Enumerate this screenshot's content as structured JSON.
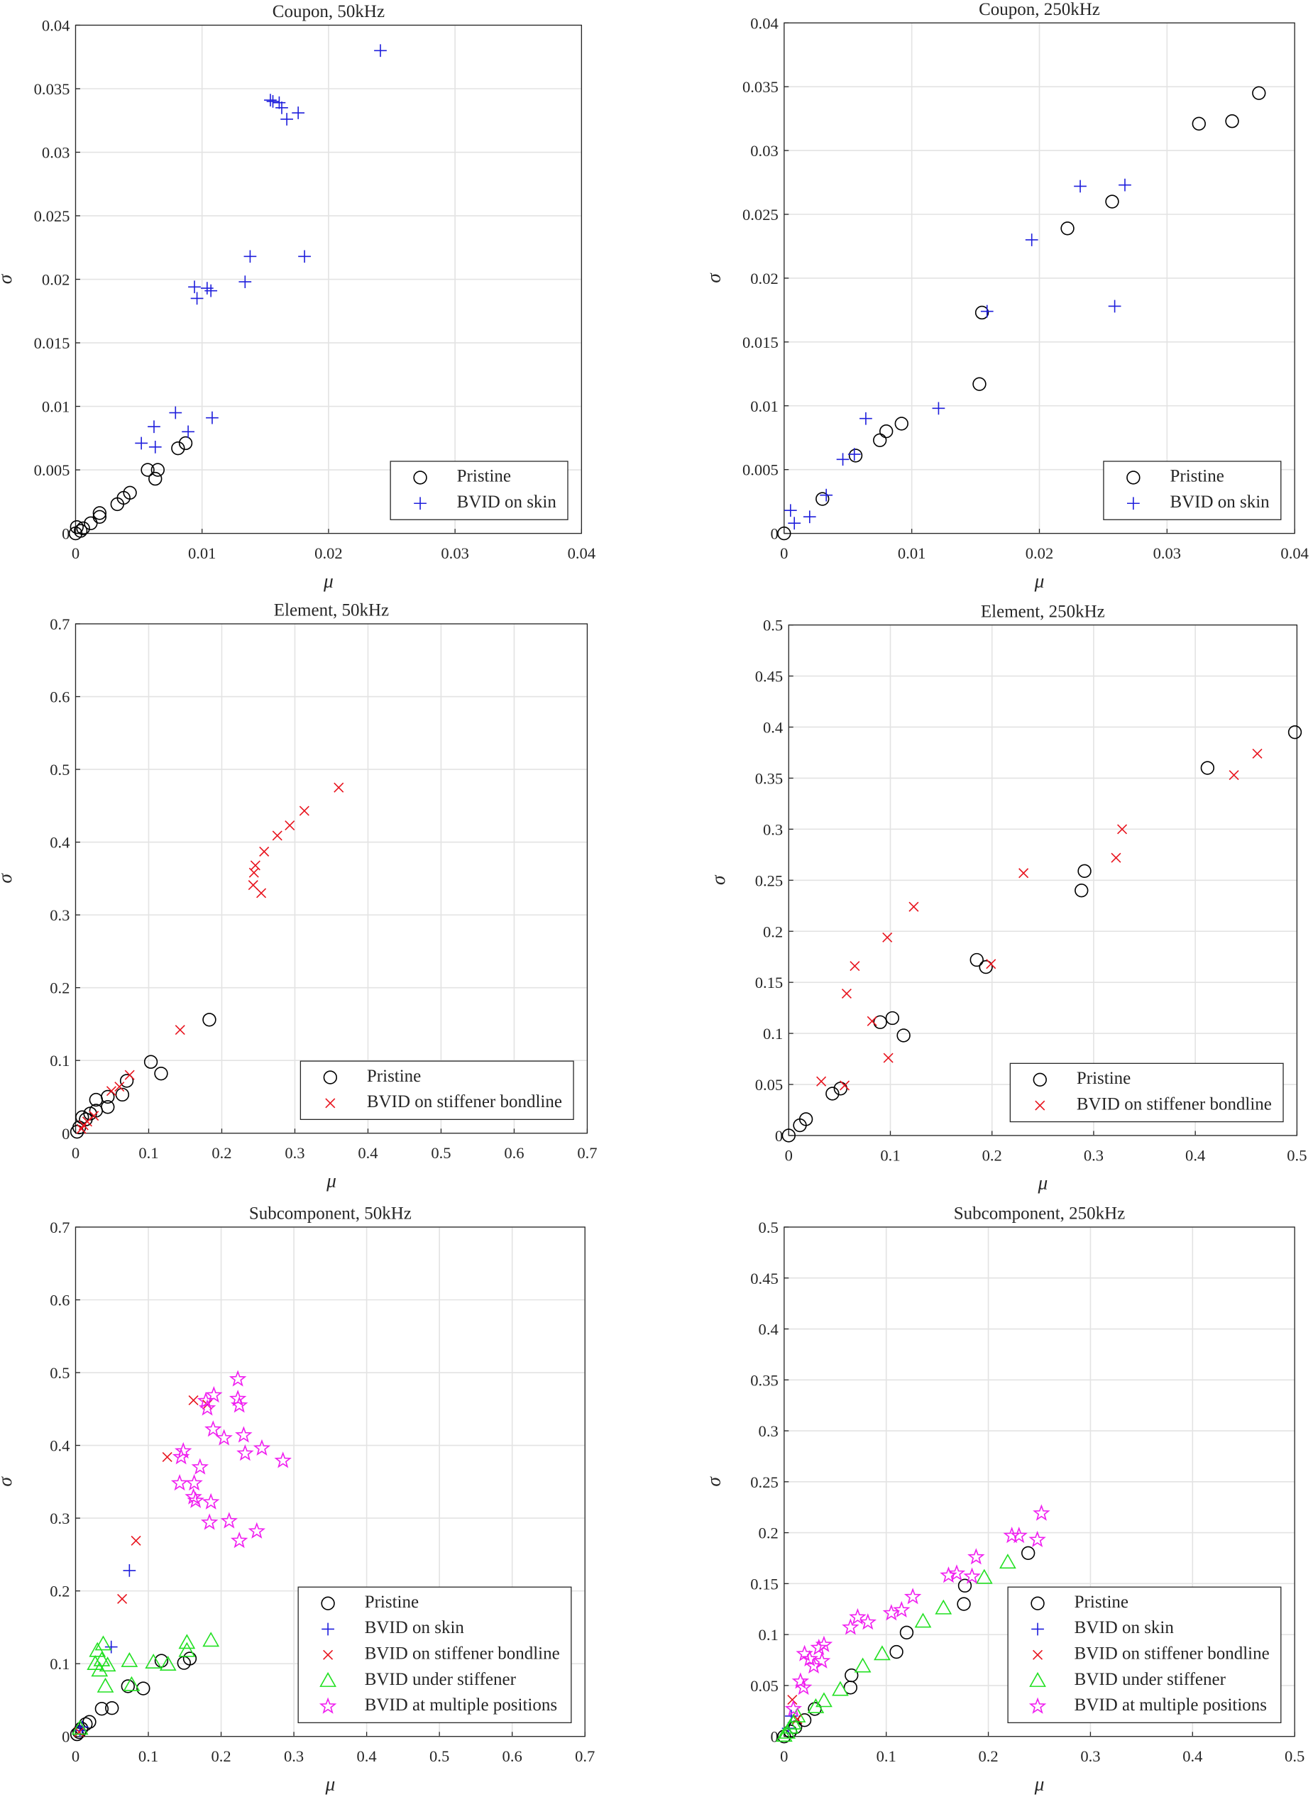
{
  "chart_data": [
    {
      "type": "scatter",
      "title": "Coupon, 50kHz",
      "x_label": "μ",
      "y_label": "σ",
      "grid": true,
      "legend": "lower right",
      "xlim": [
        0,
        0.04
      ],
      "ylim": [
        0,
        0.04
      ],
      "xticks": [
        0,
        0.01,
        0.02,
        0.03,
        0.04
      ],
      "yticks": [
        0,
        0.005,
        0.01,
        0.015,
        0.02,
        0.025,
        0.03,
        0.035,
        0.04
      ],
      "series": [
        {
          "name": "Pristine",
          "color": "#000000",
          "marker": "o",
          "x": [
            0,
            0.0001,
            0.0004,
            0.0006,
            0.0012,
            0.0019,
            0.0019,
            0.0033,
            0.0038,
            0.0043,
            0.0057,
            0.0063,
            0.0065,
            0.0081,
            0.0087
          ],
          "y": [
            0,
            0.0005,
            0.0002,
            0.0004,
            0.0008,
            0.0013,
            0.0016,
            0.0023,
            0.0028,
            0.0032,
            0.005,
            0.0043,
            0.005,
            0.0067,
            0.0071
          ]
        },
        {
          "name": "BVID on skin",
          "color": "#1f1fdc",
          "marker": "+",
          "x": [
            0.0052,
            0.0062,
            0.0063,
            0.0079,
            0.0089,
            0.0108,
            0.0094,
            0.0096,
            0.0104,
            0.0107,
            0.0134,
            0.0138,
            0.0181,
            0.0154,
            0.0156,
            0.0161,
            0.0163,
            0.0167,
            0.0176,
            0.0241
          ],
          "y": [
            0.0071,
            0.0084,
            0.0068,
            0.0095,
            0.008,
            0.0091,
            0.0194,
            0.0185,
            0.0193,
            0.0191,
            0.0198,
            0.0218,
            0.0218,
            0.0341,
            0.034,
            0.0339,
            0.0335,
            0.0326,
            0.0331,
            0.038
          ]
        }
      ]
    },
    {
      "type": "scatter",
      "title": "Coupon, 250kHz",
      "x_label": "μ",
      "y_label": "σ",
      "grid": true,
      "legend": "lower right",
      "xlim": [
        0,
        0.04
      ],
      "ylim": [
        0,
        0.04
      ],
      "xticks": [
        0,
        0.01,
        0.02,
        0.03,
        0.04
      ],
      "yticks": [
        0,
        0.005,
        0.01,
        0.015,
        0.02,
        0.025,
        0.03,
        0.035,
        0.04
      ],
      "series": [
        {
          "name": "Pristine",
          "color": "#000000",
          "marker": "o",
          "x": [
            0,
            0.003,
            0.0056,
            0.0075,
            0.008,
            0.0092,
            0.0153,
            0.0155,
            0.0222,
            0.0257,
            0.0325,
            0.0351,
            0.0372
          ],
          "y": [
            0,
            0.0027,
            0.0061,
            0.0073,
            0.008,
            0.0086,
            0.0117,
            0.0173,
            0.0239,
            0.026,
            0.0321,
            0.0323,
            0.0345
          ]
        },
        {
          "name": "BVID on skin",
          "color": "#1f1fdc",
          "marker": "+",
          "x": [
            0.0005,
            0.0008,
            0.002,
            0.0033,
            0.0046,
            0.0055,
            0.0064,
            0.0121,
            0.0159,
            0.0194,
            0.0232,
            0.0267,
            0.0259
          ],
          "y": [
            0.0018,
            0.0008,
            0.0013,
            0.003,
            0.0058,
            0.0062,
            0.009,
            0.0098,
            0.0174,
            0.023,
            0.0272,
            0.0273,
            0.0178
          ]
        }
      ]
    },
    {
      "type": "scatter",
      "title": "Element, 50kHz",
      "x_label": "μ",
      "y_label": "σ",
      "grid": true,
      "legend": "lower right",
      "xlim": [
        0,
        0.7
      ],
      "ylim": [
        0,
        0.7
      ],
      "xticks": [
        0,
        0.1,
        0.2,
        0.3,
        0.4,
        0.5,
        0.6,
        0.7
      ],
      "yticks": [
        0,
        0.1,
        0.2,
        0.3,
        0.4,
        0.5,
        0.6,
        0.7
      ],
      "series": [
        {
          "name": "Pristine",
          "color": "#000000",
          "marker": "o",
          "x": [
            0.002,
            0.005,
            0.009,
            0.014,
            0.02,
            0.028,
            0.044,
            0.028,
            0.044,
            0.064,
            0.07,
            0.103,
            0.117,
            0.183
          ],
          "y": [
            0.002,
            0.008,
            0.022,
            0.019,
            0.027,
            0.031,
            0.036,
            0.046,
            0.05,
            0.053,
            0.072,
            0.098,
            0.082,
            0.156
          ]
        },
        {
          "name": "BVID on stiffener bondline",
          "color": "#e8141e",
          "marker": "x",
          "x": [
            0.008,
            0.011,
            0.016,
            0.025,
            0.049,
            0.06,
            0.074,
            0.143,
            0.243,
            0.244,
            0.246,
            0.254,
            0.258,
            0.276,
            0.293,
            0.313,
            0.36
          ],
          "y": [
            0.006,
            0.011,
            0.016,
            0.024,
            0.058,
            0.064,
            0.08,
            0.142,
            0.341,
            0.358,
            0.368,
            0.33,
            0.387,
            0.409,
            0.423,
            0.443,
            0.475
          ]
        }
      ]
    },
    {
      "type": "scatter",
      "title": "Element, 250kHz",
      "x_label": "μ",
      "y_label": "σ",
      "grid": true,
      "legend": "lower right",
      "xlim": [
        0,
        0.5
      ],
      "ylim": [
        0,
        0.5
      ],
      "xticks": [
        0,
        0.1,
        0.2,
        0.3,
        0.4,
        0.5
      ],
      "yticks": [
        0,
        0.05,
        0.1,
        0.15,
        0.2,
        0.25,
        0.3,
        0.35,
        0.4,
        0.45,
        0.5
      ],
      "series": [
        {
          "name": "Pristine",
          "color": "#000000",
          "marker": "o",
          "x": [
            0,
            0.011,
            0.017,
            0.043,
            0.051,
            0.09,
            0.102,
            0.113,
            0.185,
            0.194,
            0.288,
            0.291,
            0.412,
            0.498
          ],
          "y": [
            0,
            0.01,
            0.016,
            0.041,
            0.046,
            0.111,
            0.115,
            0.098,
            0.172,
            0.165,
            0.24,
            0.259,
            0.36,
            0.395
          ]
        },
        {
          "name": "BVID on stiffener bondline",
          "color": "#e8141e",
          "marker": "x",
          "x": [
            0.032,
            0.055,
            0.057,
            0.065,
            0.082,
            0.098,
            0.097,
            0.123,
            0.199,
            0.231,
            0.322,
            0.328,
            0.438,
            0.461
          ],
          "y": [
            0.053,
            0.049,
            0.139,
            0.166,
            0.112,
            0.076,
            0.194,
            0.224,
            0.168,
            0.257,
            0.272,
            0.3,
            0.353,
            0.374
          ]
        }
      ]
    },
    {
      "type": "scatter",
      "title": "Subcomponent, 50kHz",
      "x_label": "μ",
      "y_label": "σ",
      "grid": true,
      "legend": "lower right",
      "xlim": [
        0,
        0.7
      ],
      "ylim": [
        0,
        0.7
      ],
      "xticks": [
        0,
        0.1,
        0.2,
        0.3,
        0.4,
        0.5,
        0.6,
        0.7
      ],
      "yticks": [
        0,
        0.1,
        0.2,
        0.3,
        0.4,
        0.5,
        0.6,
        0.7
      ],
      "series": [
        {
          "name": "Pristine",
          "color": "#000000",
          "marker": "o",
          "x": [
            0.002,
            0.005,
            0.008,
            0.014,
            0.019,
            0.036,
            0.05,
            0.072,
            0.093,
            0.118,
            0.149,
            0.157
          ],
          "y": [
            0.003,
            0.006,
            0.011,
            0.017,
            0.02,
            0.038,
            0.039,
            0.069,
            0.066,
            0.104,
            0.101,
            0.107
          ]
        },
        {
          "name": "BVID on skin",
          "color": "#1f1fdc",
          "marker": "+",
          "x": [
            0.006,
            0.009,
            0.049,
            0.074
          ],
          "y": [
            0.008,
            0.013,
            0.123,
            0.228
          ]
        },
        {
          "name": "BVID on stiffener bondline",
          "color": "#e8141e",
          "marker": "x",
          "x": [
            0.005,
            0.064,
            0.083,
            0.126,
            0.162,
            0.181
          ],
          "y": [
            0.006,
            0.189,
            0.269,
            0.384,
            0.462,
            0.456
          ]
        },
        {
          "name": "BVID under stiffener",
          "color": "#22e022",
          "marker": "^",
          "x": [
            0.006,
            0.027,
            0.03,
            0.033,
            0.036,
            0.038,
            0.041,
            0.044,
            0.074,
            0.077,
            0.107,
            0.127,
            0.153,
            0.153,
            0.186
          ],
          "y": [
            0.011,
            0.1,
            0.118,
            0.091,
            0.105,
            0.127,
            0.069,
            0.098,
            0.104,
            0.071,
            0.102,
            0.099,
            0.118,
            0.129,
            0.132
          ]
        },
        {
          "name": "BVID at multiple positions",
          "color": "#f01ef0",
          "marker": "p",
          "x": [
            0.143,
            0.145,
            0.148,
            0.162,
            0.163,
            0.165,
            0.171,
            0.179,
            0.181,
            0.184,
            0.186,
            0.189,
            0.19,
            0.204,
            0.211,
            0.223,
            0.223,
            0.225,
            0.225,
            0.231,
            0.233,
            0.249,
            0.256,
            0.285
          ],
          "y": [
            0.348,
            0.384,
            0.392,
            0.329,
            0.348,
            0.324,
            0.37,
            0.461,
            0.451,
            0.294,
            0.322,
            0.422,
            0.469,
            0.41,
            0.296,
            0.491,
            0.464,
            0.455,
            0.269,
            0.414,
            0.389,
            0.282,
            0.396,
            0.379
          ]
        }
      ]
    },
    {
      "type": "scatter",
      "title": "Subcomponent, 250kHz",
      "x_label": "μ",
      "y_label": "σ",
      "grid": true,
      "legend": "lower right",
      "xlim": [
        0,
        0.5
      ],
      "ylim": [
        0,
        0.5
      ],
      "xticks": [
        0,
        0.1,
        0.2,
        0.3,
        0.4,
        0.5
      ],
      "yticks": [
        0,
        0.05,
        0.1,
        0.15,
        0.2,
        0.25,
        0.3,
        0.35,
        0.4,
        0.45,
        0.5
      ],
      "series": [
        {
          "name": "Pristine",
          "color": "#000000",
          "marker": "o",
          "x": [
            0,
            0.006,
            0.011,
            0.02,
            0.03,
            0.065,
            0.066,
            0.11,
            0.12,
            0.176,
            0.177,
            0.239
          ],
          "y": [
            0,
            0.005,
            0.009,
            0.016,
            0.027,
            0.048,
            0.06,
            0.083,
            0.102,
            0.13,
            0.148,
            0.18
          ]
        },
        {
          "name": "BVID on skin",
          "color": "#1f1fdc",
          "marker": "+",
          "x": [
            0.004,
            0.007
          ],
          "y": [
            0.008,
            0.02
          ]
        },
        {
          "name": "BVID on stiffener bondline",
          "color": "#e8141e",
          "marker": "x",
          "x": [
            0.008,
            0.013
          ],
          "y": [
            0.036,
            0.017
          ]
        },
        {
          "name": "BVID under stiffener",
          "color": "#22e022",
          "marker": "^",
          "x": [
            0,
            0.003,
            0.006,
            0.009,
            0.013,
            0.031,
            0.039,
            0.055,
            0.077,
            0.096,
            0.136,
            0.156,
            0.196,
            0.219
          ],
          "y": [
            0.001,
            0.004,
            0.009,
            0.013,
            0.02,
            0.029,
            0.035,
            0.046,
            0.069,
            0.081,
            0.113,
            0.126,
            0.156,
            0.171
          ]
        },
        {
          "name": "BVID at multiple positions",
          "color": "#f01ef0",
          "marker": "p",
          "x": [
            0.009,
            0.016,
            0.019,
            0.02,
            0.025,
            0.029,
            0.034,
            0.037,
            0.039,
            0.065,
            0.072,
            0.082,
            0.105,
            0.115,
            0.126,
            0.161,
            0.169,
            0.184,
            0.188,
            0.223,
            0.23,
            0.248,
            0.252
          ],
          "y": [
            0.027,
            0.054,
            0.048,
            0.081,
            0.076,
            0.069,
            0.087,
            0.074,
            0.09,
            0.107,
            0.117,
            0.112,
            0.121,
            0.124,
            0.137,
            0.158,
            0.16,
            0.157,
            0.176,
            0.197,
            0.197,
            0.193,
            0.219
          ]
        }
      ]
    }
  ]
}
